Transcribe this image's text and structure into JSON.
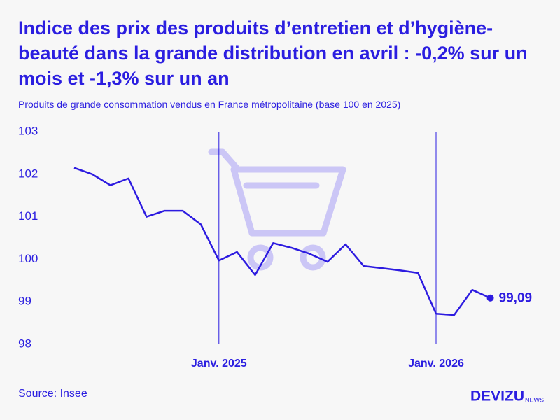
{
  "chart_data": {
    "type": "line",
    "title": "Indice des prix des produits d’entretien et d’hygiène-beauté dans la grande distribution en avril : -0,2% sur un mois et -1,3% sur un an",
    "subtitle": "Produits de grande consommation vendus en France métropolitaine (base 100 en 2025)",
    "source": "Source: Insee",
    "brand": "DEVIZU",
    "brand_suffix": "NEWS",
    "categories": [
      null,
      null,
      null,
      null,
      null,
      null,
      null,
      null,
      "Janv. 2025",
      null,
      null,
      null,
      null,
      null,
      null,
      null,
      null,
      null,
      null,
      null,
      "Janv. 2026",
      null,
      null,
      null
    ],
    "series": [
      {
        "name": "Indice",
        "color": "#2d1be0",
        "values": [
          102.15,
          102.0,
          101.74,
          101.9,
          101.0,
          101.14,
          101.14,
          100.82,
          99.97,
          100.17,
          99.63,
          100.38,
          100.27,
          100.13,
          99.94,
          100.35,
          99.84,
          99.79,
          99.74,
          99.68,
          98.72,
          98.69,
          99.28,
          99.09
        ],
        "value_labels": [
          null,
          null,
          null,
          null,
          null,
          null,
          null,
          null,
          null,
          null,
          null,
          null,
          null,
          null,
          null,
          null,
          null,
          null,
          null,
          null,
          null,
          null,
          null,
          "99,09"
        ]
      }
    ],
    "ylim": [
      98,
      103
    ],
    "yticks": [
      98,
      99,
      100,
      101,
      102,
      103
    ],
    "grid": false
  }
}
